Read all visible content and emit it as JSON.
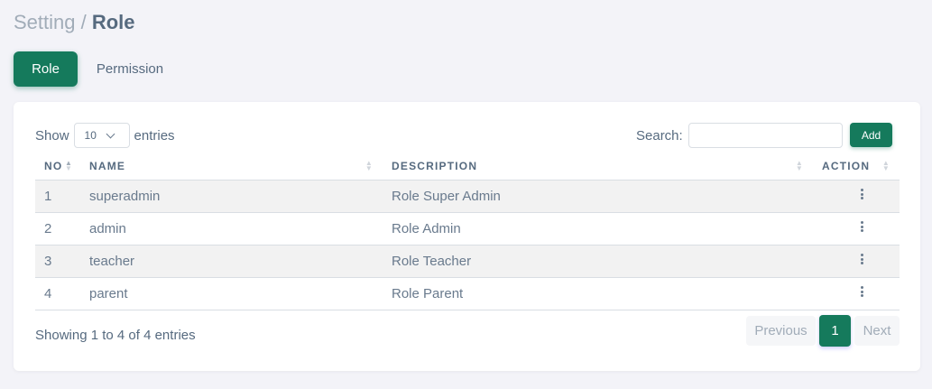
{
  "breadcrumb": {
    "parent": "Setting /",
    "current": "Role"
  },
  "tabs": [
    {
      "label": "Role",
      "active": true
    },
    {
      "label": "Permission",
      "active": false
    }
  ],
  "table_controls": {
    "show_label": "Show",
    "entries_value": "10",
    "entries_label": "entries",
    "search_label": "Search:",
    "search_value": "",
    "add_label": "Add"
  },
  "columns": [
    "NO",
    "NAME",
    "DESCRIPTION",
    "ACTION"
  ],
  "rows": [
    {
      "no": "1",
      "name": "superadmin",
      "description": "Role Super Admin"
    },
    {
      "no": "2",
      "name": "admin",
      "description": "Role Admin"
    },
    {
      "no": "3",
      "name": "teacher",
      "description": "Role Teacher"
    },
    {
      "no": "4",
      "name": "parent",
      "description": "Role Parent"
    }
  ],
  "footer": {
    "info": "Showing 1 to 4 of 4 entries",
    "previous": "Previous",
    "page": "1",
    "next": "Next"
  },
  "colors": {
    "primary": "#157a5c",
    "background": "#f3f3f8",
    "text": "#566a7f"
  }
}
